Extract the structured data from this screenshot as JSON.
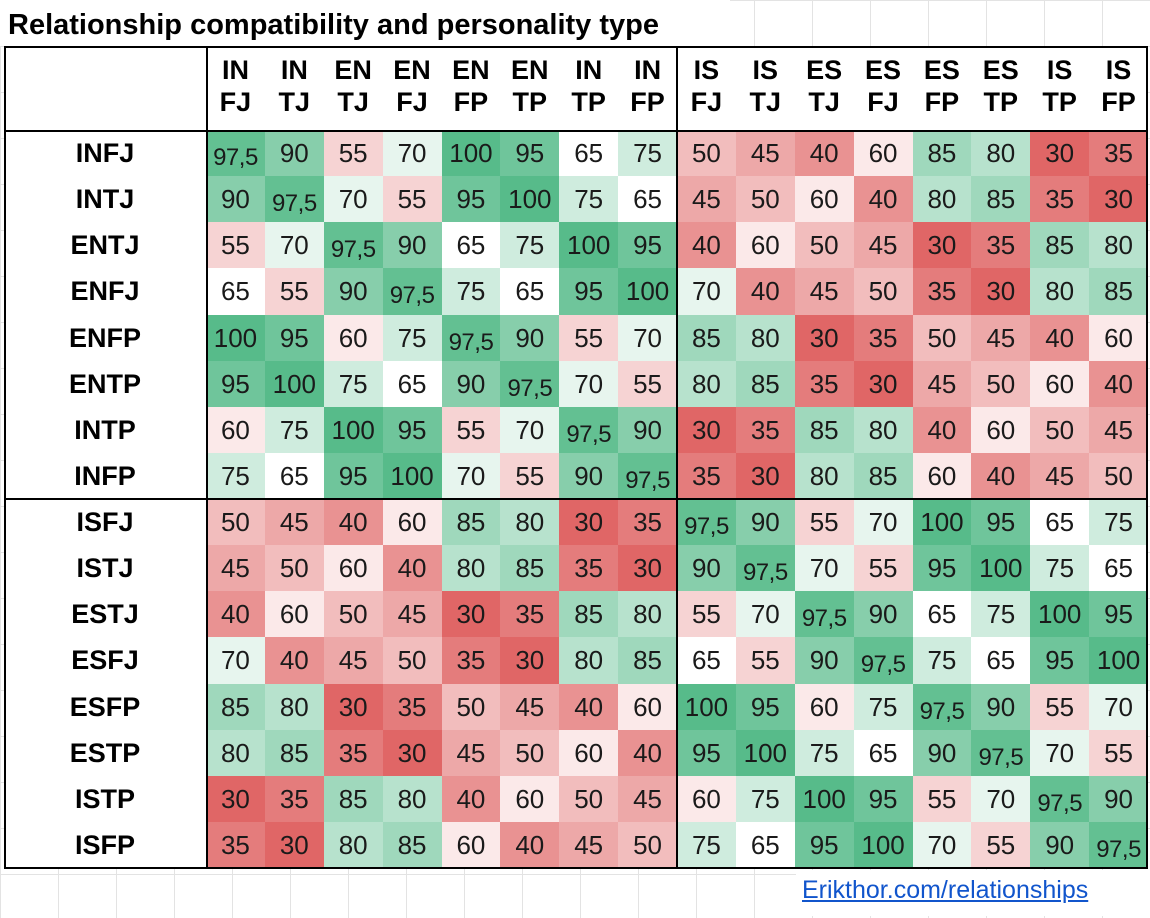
{
  "title": "Relationship compatibility and personality type",
  "link": "Erikthor.com/relationships",
  "colors": {
    "low": "#e06666",
    "mid": "#ffffff",
    "high": "#57bb8a"
  },
  "chart_data": {
    "type": "heatmap",
    "title": "Relationship compatibility and personality type",
    "min": 30,
    "mid": 65,
    "max": 100,
    "columns": [
      [
        "IN",
        "FJ"
      ],
      [
        "IN",
        "TJ"
      ],
      [
        "EN",
        "TJ"
      ],
      [
        "EN",
        "FJ"
      ],
      [
        "EN",
        "FP"
      ],
      [
        "EN",
        "TP"
      ],
      [
        "IN",
        "TP"
      ],
      [
        "IN",
        "FP"
      ],
      [
        "IS",
        "FJ"
      ],
      [
        "IS",
        "TJ"
      ],
      [
        "ES",
        "TJ"
      ],
      [
        "ES",
        "FJ"
      ],
      [
        "ES",
        "FP"
      ],
      [
        "ES",
        "TP"
      ],
      [
        "IS",
        "TP"
      ],
      [
        "IS",
        "FP"
      ]
    ],
    "rows": [
      {
        "label": "INFJ",
        "values": [
          "97,5",
          "90",
          "55",
          "70",
          "100",
          "95",
          "65",
          "75",
          "50",
          "45",
          "40",
          "60",
          "85",
          "80",
          "30",
          "35"
        ]
      },
      {
        "label": "INTJ",
        "values": [
          "90",
          "97,5",
          "70",
          "55",
          "95",
          "100",
          "75",
          "65",
          "45",
          "50",
          "60",
          "40",
          "80",
          "85",
          "35",
          "30"
        ]
      },
      {
        "label": "ENTJ",
        "values": [
          "55",
          "70",
          "97,5",
          "90",
          "65",
          "75",
          "100",
          "95",
          "40",
          "60",
          "50",
          "45",
          "30",
          "35",
          "85",
          "80"
        ]
      },
      {
        "label": "ENFJ",
        "values": [
          "65",
          "55",
          "90",
          "97,5",
          "75",
          "65",
          "95",
          "100",
          "70",
          "40",
          "45",
          "50",
          "35",
          "30",
          "80",
          "85"
        ]
      },
      {
        "label": "ENFP",
        "values": [
          "100",
          "95",
          "60",
          "75",
          "97,5",
          "90",
          "55",
          "70",
          "85",
          "80",
          "30",
          "35",
          "50",
          "45",
          "40",
          "60"
        ]
      },
      {
        "label": "ENTP",
        "values": [
          "95",
          "100",
          "75",
          "65",
          "90",
          "97,5",
          "70",
          "55",
          "80",
          "85",
          "35",
          "30",
          "45",
          "50",
          "60",
          "40"
        ]
      },
      {
        "label": "INTP",
        "values": [
          "60",
          "75",
          "100",
          "95",
          "55",
          "70",
          "97,5",
          "90",
          "30",
          "35",
          "85",
          "80",
          "40",
          "60",
          "50",
          "45"
        ]
      },
      {
        "label": "INFP",
        "values": [
          "75",
          "65",
          "95",
          "100",
          "70",
          "55",
          "90",
          "97,5",
          "35",
          "30",
          "80",
          "85",
          "60",
          "40",
          "45",
          "50"
        ]
      },
      {
        "label": "ISFJ",
        "values": [
          "50",
          "45",
          "40",
          "60",
          "85",
          "80",
          "30",
          "35",
          "97,5",
          "90",
          "55",
          "70",
          "100",
          "95",
          "65",
          "75"
        ]
      },
      {
        "label": "ISTJ",
        "values": [
          "45",
          "50",
          "60",
          "40",
          "80",
          "85",
          "35",
          "30",
          "90",
          "97,5",
          "70",
          "55",
          "95",
          "100",
          "75",
          "65"
        ]
      },
      {
        "label": "ESTJ",
        "values": [
          "40",
          "60",
          "50",
          "45",
          "30",
          "35",
          "85",
          "80",
          "55",
          "70",
          "97,5",
          "90",
          "65",
          "75",
          "100",
          "95"
        ]
      },
      {
        "label": "ESFJ",
        "values": [
          "70",
          "40",
          "45",
          "50",
          "35",
          "30",
          "80",
          "85",
          "65",
          "55",
          "90",
          "97,5",
          "75",
          "65",
          "95",
          "100"
        ]
      },
      {
        "label": "ESFP",
        "values": [
          "85",
          "80",
          "30",
          "35",
          "50",
          "45",
          "40",
          "60",
          "100",
          "95",
          "60",
          "75",
          "97,5",
          "90",
          "55",
          "70"
        ]
      },
      {
        "label": "ESTP",
        "values": [
          "80",
          "85",
          "35",
          "30",
          "45",
          "50",
          "60",
          "40",
          "95",
          "100",
          "75",
          "65",
          "90",
          "97,5",
          "70",
          "55"
        ]
      },
      {
        "label": "ISTP",
        "values": [
          "30",
          "35",
          "85",
          "80",
          "40",
          "60",
          "50",
          "45",
          "60",
          "75",
          "100",
          "95",
          "55",
          "70",
          "97,5",
          "90"
        ]
      },
      {
        "label": "ISFP",
        "values": [
          "35",
          "30",
          "80",
          "85",
          "60",
          "40",
          "45",
          "50",
          "75",
          "65",
          "95",
          "100",
          "70",
          "55",
          "90",
          "97,5"
        ]
      }
    ]
  }
}
